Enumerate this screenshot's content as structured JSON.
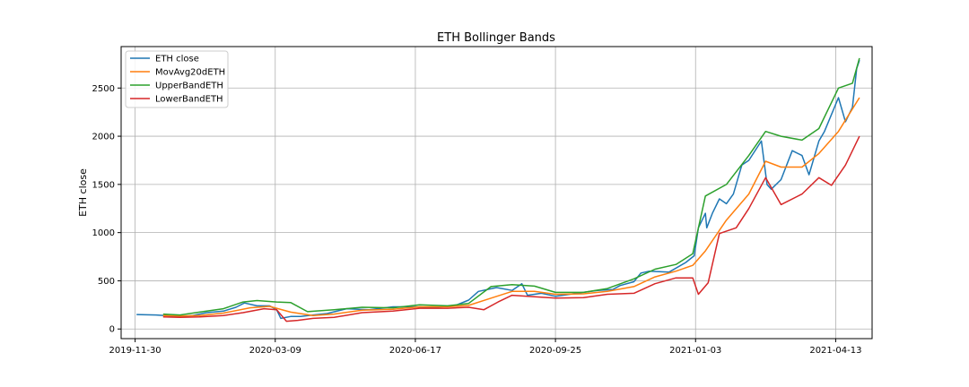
{
  "chart_data": {
    "type": "line",
    "title": "ETH Bollinger Bands",
    "xlabel": "",
    "ylabel": "ETH close",
    "xlim": [
      "2019-11-20",
      "2021-05-09"
    ],
    "ylim": [
      -100,
      2930
    ],
    "xticks": [
      "2019-11-30",
      "2020-03-09",
      "2020-06-17",
      "2020-09-25",
      "2021-01-03",
      "2021-04-13"
    ],
    "yticks": [
      0,
      500,
      1000,
      1500,
      2000,
      2500
    ],
    "grid": true,
    "legend_position": "top-left",
    "series": [
      {
        "name": "ETH close",
        "color": "#1f77b4",
        "points": [
          [
            "2019-12-01",
            150
          ],
          [
            "2019-12-15",
            145
          ],
          [
            "2019-12-31",
            130
          ],
          [
            "2020-01-10",
            140
          ],
          [
            "2020-01-20",
            170
          ],
          [
            "2020-02-01",
            185
          ],
          [
            "2020-02-10",
            225
          ],
          [
            "2020-02-16",
            270
          ],
          [
            "2020-02-25",
            240
          ],
          [
            "2020-03-05",
            240
          ],
          [
            "2020-03-10",
            200
          ],
          [
            "2020-03-13",
            110
          ],
          [
            "2020-03-20",
            130
          ],
          [
            "2020-03-27",
            130
          ],
          [
            "2020-04-05",
            145
          ],
          [
            "2020-04-15",
            160
          ],
          [
            "2020-04-29",
            210
          ],
          [
            "2020-05-15",
            200
          ],
          [
            "2020-06-01",
            230
          ],
          [
            "2020-06-15",
            230
          ],
          [
            "2020-07-01",
            225
          ],
          [
            "2020-07-15",
            240
          ],
          [
            "2020-07-25",
            300
          ],
          [
            "2020-08-01",
            390
          ],
          [
            "2020-08-14",
            430
          ],
          [
            "2020-08-25",
            400
          ],
          [
            "2020-09-01",
            470
          ],
          [
            "2020-09-05",
            350
          ],
          [
            "2020-09-15",
            370
          ],
          [
            "2020-09-25",
            340
          ],
          [
            "2020-10-10",
            370
          ],
          [
            "2020-10-25",
            400
          ],
          [
            "2020-11-05",
            410
          ],
          [
            "2020-11-10",
            450
          ],
          [
            "2020-11-20",
            490
          ],
          [
            "2020-11-25",
            580
          ],
          [
            "2020-12-01",
            600
          ],
          [
            "2020-12-15",
            590
          ],
          [
            "2020-12-27",
            690
          ],
          [
            "2021-01-02",
            760
          ],
          [
            "2021-01-05",
            1050
          ],
          [
            "2021-01-10",
            1200
          ],
          [
            "2021-01-11",
            1050
          ],
          [
            "2021-01-15",
            1200
          ],
          [
            "2021-01-20",
            1350
          ],
          [
            "2021-01-25",
            1300
          ],
          [
            "2021-01-30",
            1400
          ],
          [
            "2021-02-05",
            1700
          ],
          [
            "2021-02-10",
            1750
          ],
          [
            "2021-02-19",
            1950
          ],
          [
            "2021-02-23",
            1500
          ],
          [
            "2021-02-26",
            1450
          ],
          [
            "2021-03-05",
            1550
          ],
          [
            "2021-03-13",
            1850
          ],
          [
            "2021-03-20",
            1800
          ],
          [
            "2021-03-25",
            1600
          ],
          [
            "2021-04-01",
            1950
          ],
          [
            "2021-04-05",
            2050
          ],
          [
            "2021-04-15",
            2400
          ],
          [
            "2021-04-20",
            2150
          ],
          [
            "2021-04-25",
            2300
          ],
          [
            "2021-04-28",
            2700
          ],
          [
            "2021-04-30",
            2790
          ]
        ]
      },
      {
        "name": "MovAvg20dETH",
        "color": "#ff7f0e",
        "points": [
          [
            "2019-12-20",
            140
          ],
          [
            "2020-01-01",
            135
          ],
          [
            "2020-01-15",
            140
          ],
          [
            "2020-02-01",
            165
          ],
          [
            "2020-02-20",
            220
          ],
          [
            "2020-03-05",
            235
          ],
          [
            "2020-03-20",
            175
          ],
          [
            "2020-04-05",
            140
          ],
          [
            "2020-04-20",
            155
          ],
          [
            "2020-05-10",
            195
          ],
          [
            "2020-06-01",
            205
          ],
          [
            "2020-06-20",
            230
          ],
          [
            "2020-07-10",
            230
          ],
          [
            "2020-07-25",
            245
          ],
          [
            "2020-08-10",
            320
          ],
          [
            "2020-08-25",
            390
          ],
          [
            "2020-09-10",
            390
          ],
          [
            "2020-09-25",
            360
          ],
          [
            "2020-10-15",
            365
          ],
          [
            "2020-11-01",
            390
          ],
          [
            "2020-11-20",
            440
          ],
          [
            "2020-12-05",
            540
          ],
          [
            "2020-12-20",
            600
          ],
          [
            "2021-01-01",
            660
          ],
          [
            "2021-01-10",
            810
          ],
          [
            "2021-01-25",
            1130
          ],
          [
            "2021-02-10",
            1400
          ],
          [
            "2021-02-22",
            1740
          ],
          [
            "2021-03-05",
            1680
          ],
          [
            "2021-03-20",
            1680
          ],
          [
            "2021-04-01",
            1820
          ],
          [
            "2021-04-15",
            2050
          ],
          [
            "2021-04-30",
            2400
          ]
        ]
      },
      {
        "name": "UpperBandETH",
        "color": "#2ca02c",
        "points": [
          [
            "2019-12-20",
            155
          ],
          [
            "2020-01-01",
            145
          ],
          [
            "2020-01-15",
            175
          ],
          [
            "2020-02-01",
            210
          ],
          [
            "2020-02-15",
            280
          ],
          [
            "2020-02-25",
            295
          ],
          [
            "2020-03-10",
            280
          ],
          [
            "2020-03-20",
            275
          ],
          [
            "2020-04-01",
            180
          ],
          [
            "2020-04-20",
            200
          ],
          [
            "2020-05-10",
            225
          ],
          [
            "2020-06-01",
            220
          ],
          [
            "2020-06-20",
            250
          ],
          [
            "2020-07-10",
            240
          ],
          [
            "2020-07-25",
            265
          ],
          [
            "2020-08-10",
            440
          ],
          [
            "2020-08-25",
            460
          ],
          [
            "2020-09-10",
            445
          ],
          [
            "2020-09-25",
            380
          ],
          [
            "2020-10-15",
            380
          ],
          [
            "2020-11-01",
            420
          ],
          [
            "2020-11-20",
            520
          ],
          [
            "2020-12-05",
            620
          ],
          [
            "2020-12-20",
            670
          ],
          [
            "2021-01-01",
            780
          ],
          [
            "2021-01-10",
            1380
          ],
          [
            "2021-01-25",
            1500
          ],
          [
            "2021-02-10",
            1800
          ],
          [
            "2021-02-22",
            2050
          ],
          [
            "2021-03-05",
            2000
          ],
          [
            "2021-03-20",
            1960
          ],
          [
            "2021-04-01",
            2080
          ],
          [
            "2021-04-15",
            2500
          ],
          [
            "2021-04-25",
            2550
          ],
          [
            "2021-04-30",
            2810
          ]
        ]
      },
      {
        "name": "LowerBandETH",
        "color": "#d62728",
        "points": [
          [
            "2019-12-20",
            125
          ],
          [
            "2020-01-01",
            120
          ],
          [
            "2020-01-15",
            125
          ],
          [
            "2020-02-01",
            140
          ],
          [
            "2020-02-15",
            170
          ],
          [
            "2020-03-01",
            210
          ],
          [
            "2020-03-10",
            200
          ],
          [
            "2020-03-17",
            80
          ],
          [
            "2020-03-25",
            90
          ],
          [
            "2020-04-05",
            110
          ],
          [
            "2020-04-20",
            120
          ],
          [
            "2020-05-10",
            170
          ],
          [
            "2020-06-01",
            185
          ],
          [
            "2020-06-20",
            215
          ],
          [
            "2020-07-10",
            215
          ],
          [
            "2020-07-25",
            225
          ],
          [
            "2020-08-05",
            200
          ],
          [
            "2020-08-15",
            280
          ],
          [
            "2020-08-25",
            350
          ],
          [
            "2020-09-10",
            335
          ],
          [
            "2020-09-25",
            320
          ],
          [
            "2020-10-15",
            325
          ],
          [
            "2020-11-01",
            360
          ],
          [
            "2020-11-20",
            370
          ],
          [
            "2020-12-05",
            470
          ],
          [
            "2020-12-20",
            530
          ],
          [
            "2021-01-01",
            530
          ],
          [
            "2021-01-05",
            360
          ],
          [
            "2021-01-12",
            480
          ],
          [
            "2021-01-20",
            990
          ],
          [
            "2021-02-01",
            1050
          ],
          [
            "2021-02-10",
            1250
          ],
          [
            "2021-02-22",
            1570
          ],
          [
            "2021-03-05",
            1290
          ],
          [
            "2021-03-20",
            1400
          ],
          [
            "2021-04-01",
            1570
          ],
          [
            "2021-04-10",
            1490
          ],
          [
            "2021-04-20",
            1700
          ],
          [
            "2021-04-30",
            2000
          ]
        ]
      }
    ]
  }
}
